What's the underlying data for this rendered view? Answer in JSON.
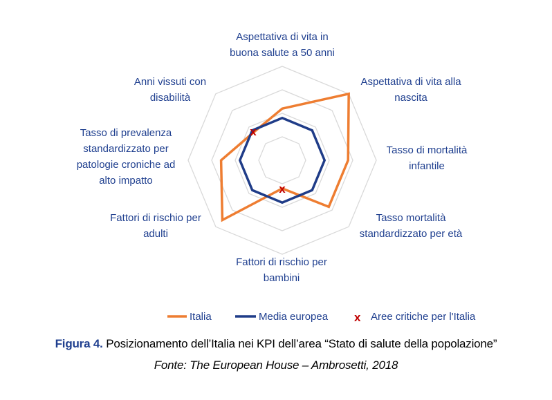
{
  "chart_data": {
    "type": "radar",
    "axes": [
      [
        "Aspettativa di vita in",
        "buona salute a 50 anni"
      ],
      [
        "Aspettativa di vita alla",
        "nascita"
      ],
      [
        "Tasso di mortalità",
        "infantile"
      ],
      [
        "Tasso mortalità",
        "standardizzato per età"
      ],
      [
        "Fattori di rischio per",
        "bambini"
      ],
      [
        "Fattori di  rischio per",
        "adulti"
      ],
      [
        "Tasso di prevalenza",
        "standardizzato per",
        "patologie croniche ad",
        "alto impatto"
      ],
      [
        "Anni vissuti con",
        "disabilità"
      ]
    ],
    "rings": 4,
    "rmax": 4,
    "series": [
      {
        "name": "Italia",
        "color": "#ee7d31",
        "values": [
          2.2,
          4.0,
          2.8,
          2.8,
          1.2,
          3.6,
          2.6,
          1.7
        ]
      },
      {
        "name": "Media europea",
        "color": "#1f3c88",
        "values": [
          1.8,
          1.8,
          1.8,
          1.8,
          1.8,
          1.8,
          1.8,
          1.8
        ]
      }
    ],
    "critical": {
      "label": "Aree critiche per l'Italia",
      "color": "#c00000",
      "marker": "x",
      "points": [
        {
          "axis": 7,
          "value": 1.75
        },
        {
          "axis": 4,
          "value": 1.2
        }
      ]
    }
  },
  "caption": {
    "figure": "Figura 4.",
    "text": " Posizionamento dell’Italia nei KPI dell’area “Stato di salute della popolazione”",
    "source": "Fonte: The European House – Ambrosetti, 2018"
  }
}
